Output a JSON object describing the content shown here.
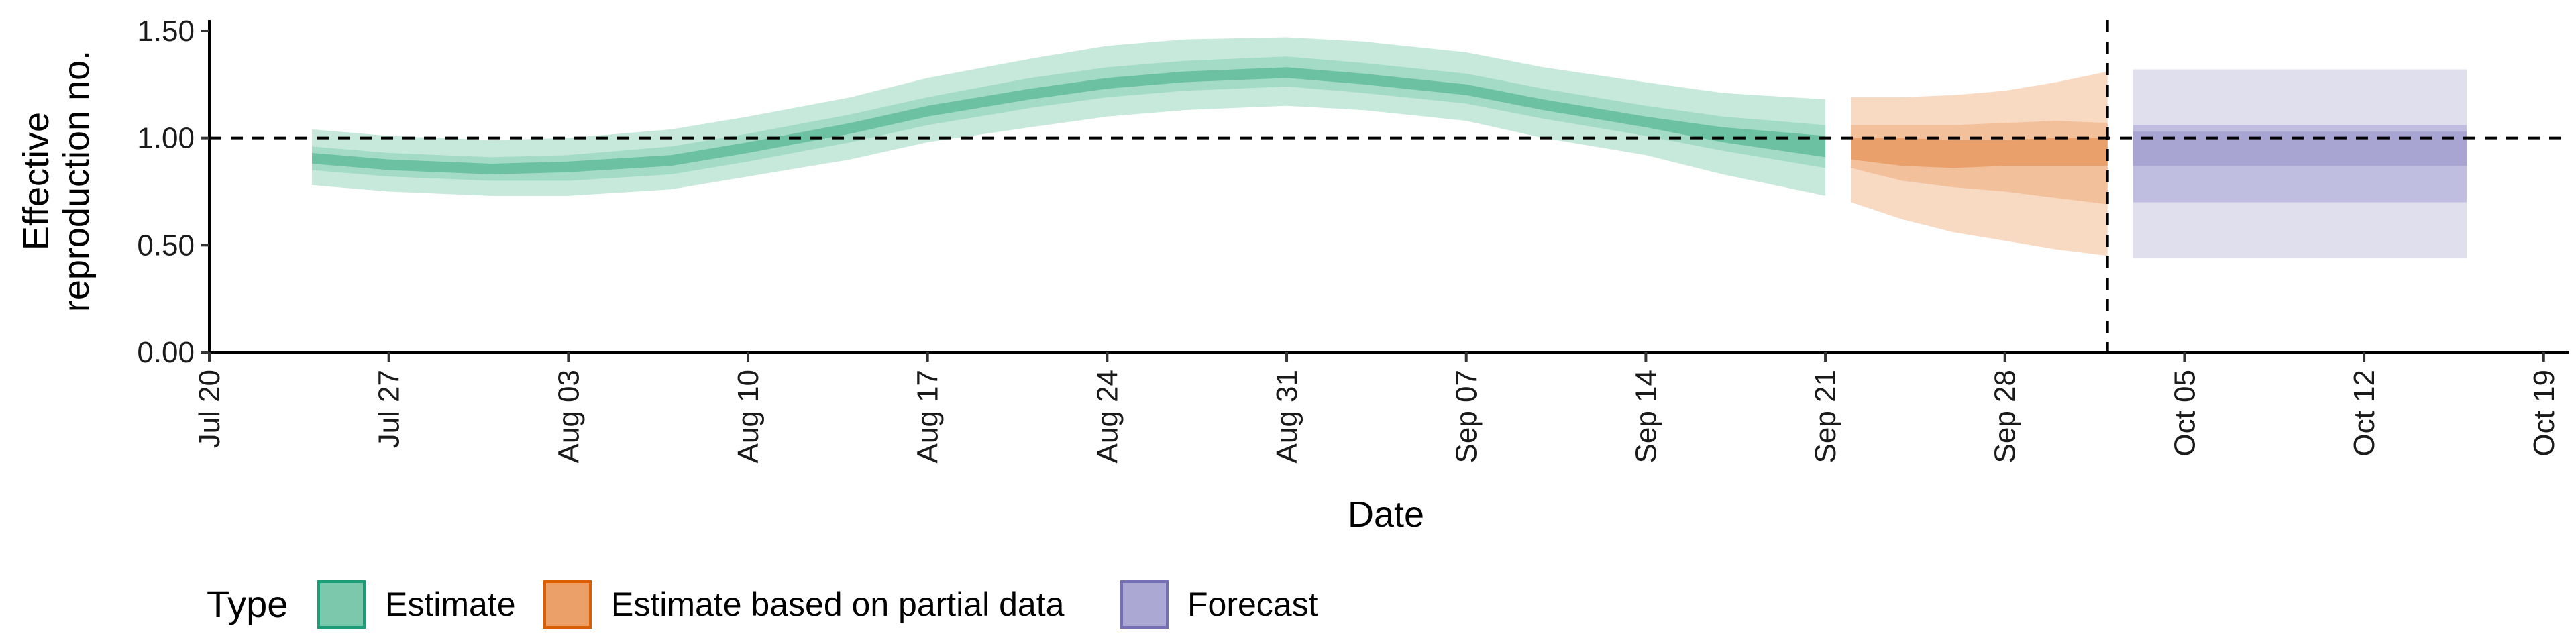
{
  "chart_data": {
    "type": "area",
    "xlabel": "Date",
    "ylabel_lines": [
      "Effective",
      "reproduction no."
    ],
    "ylim": [
      0,
      1.55
    ],
    "xlim": [
      "2020-07-20",
      "2020-10-20"
    ],
    "y_ticks": [
      0,
      0.5,
      1,
      1.5
    ],
    "y_tick_labels": [
      "0.00",
      "0.50",
      "1.00",
      "1.50"
    ],
    "x_ticks": [
      "2020-07-20",
      "2020-07-27",
      "2020-08-03",
      "2020-08-10",
      "2020-08-17",
      "2020-08-24",
      "2020-08-31",
      "2020-09-07",
      "2020-09-14",
      "2020-09-21",
      "2020-09-28",
      "2020-10-05",
      "2020-10-12",
      "2020-10-19"
    ],
    "x_tick_labels": [
      "Jul 20",
      "Jul 27",
      "Aug 03",
      "Aug 10",
      "Aug 17",
      "Aug 24",
      "Aug 31",
      "Sep 07",
      "Sep 14",
      "Sep 21",
      "Sep 28",
      "Oct 05",
      "Oct 12",
      "Oct 19"
    ],
    "reference_line_y": 1.0,
    "reference_line_x": "2020-10-02",
    "grid": false,
    "legend": {
      "title": "Type",
      "position": "bottom-left",
      "entries": [
        {
          "label": "Estimate",
          "fill": "#7cc8ad",
          "stroke": "#1b9e77"
        },
        {
          "label": "Estimate based on partial data",
          "fill": "#eba06a",
          "stroke": "#d95f02"
        },
        {
          "label": "Forecast",
          "fill": "#aba8d4",
          "stroke": "#7570b3"
        }
      ]
    },
    "series": [
      {
        "type": "Estimate",
        "colors": {
          "outer": "#c7e9dc",
          "mid": "#a3dbc6",
          "inner": "#6cc1a2"
        },
        "x": [
          "2020-07-24",
          "2020-07-27",
          "2020-07-31",
          "2020-08-03",
          "2020-08-07",
          "2020-08-10",
          "2020-08-14",
          "2020-08-17",
          "2020-08-21",
          "2020-08-24",
          "2020-08-27",
          "2020-08-31",
          "2020-09-03",
          "2020-09-07",
          "2020-09-10",
          "2020-09-14",
          "2020-09-17",
          "2020-09-21"
        ],
        "outer_low": [
          0.78,
          0.75,
          0.73,
          0.73,
          0.76,
          0.82,
          0.9,
          0.98,
          1.05,
          1.1,
          1.13,
          1.15,
          1.13,
          1.08,
          1.0,
          0.92,
          0.83,
          0.73
        ],
        "outer_high": [
          1.04,
          1.01,
          0.99,
          1.0,
          1.04,
          1.1,
          1.19,
          1.28,
          1.37,
          1.43,
          1.46,
          1.47,
          1.45,
          1.4,
          1.33,
          1.26,
          1.21,
          1.18
        ],
        "mid_low": [
          0.85,
          0.82,
          0.8,
          0.8,
          0.83,
          0.89,
          0.98,
          1.06,
          1.14,
          1.19,
          1.22,
          1.24,
          1.21,
          1.16,
          1.09,
          1.01,
          0.94,
          0.86
        ],
        "mid_high": [
          0.96,
          0.93,
          0.91,
          0.92,
          0.96,
          1.02,
          1.11,
          1.19,
          1.28,
          1.33,
          1.36,
          1.38,
          1.35,
          1.3,
          1.23,
          1.15,
          1.1,
          1.06
        ],
        "inner_low": [
          0.88,
          0.85,
          0.83,
          0.84,
          0.87,
          0.93,
          1.02,
          1.1,
          1.18,
          1.23,
          1.26,
          1.28,
          1.25,
          1.2,
          1.13,
          1.05,
          0.98,
          0.91
        ],
        "inner_high": [
          0.93,
          0.9,
          0.88,
          0.89,
          0.92,
          0.98,
          1.07,
          1.15,
          1.23,
          1.28,
          1.31,
          1.33,
          1.3,
          1.25,
          1.18,
          1.1,
          1.05,
          1.01
        ]
      },
      {
        "type": "Estimate based on partial data",
        "colors": {
          "outer": "#f8d9c2",
          "mid": "#f3c09c",
          "inner": "#e9a06b"
        },
        "x": [
          "2020-09-22",
          "2020-09-24",
          "2020-09-26",
          "2020-09-28",
          "2020-09-30",
          "2020-10-02"
        ],
        "outer_low": [
          0.7,
          0.62,
          0.56,
          0.52,
          0.48,
          0.45
        ],
        "outer_high": [
          1.19,
          1.19,
          1.2,
          1.22,
          1.26,
          1.31
        ],
        "mid_low": [
          0.86,
          0.8,
          0.77,
          0.75,
          0.72,
          0.69
        ],
        "mid_high": [
          1.06,
          1.06,
          1.06,
          1.07,
          1.08,
          1.07
        ],
        "inner_low": [
          0.9,
          0.87,
          0.86,
          0.87,
          0.87,
          0.87
        ],
        "inner_high": [
          1.0,
          1.0,
          0.99,
          0.99,
          1.0,
          1.0
        ]
      },
      {
        "type": "Forecast",
        "colors": {
          "outer": "#e0dfee",
          "mid": "#bfbde0",
          "inner": "#a8a5d2"
        },
        "x": [
          "2020-10-03",
          "2020-10-16"
        ],
        "outer_low": [
          0.44,
          0.44
        ],
        "outer_high": [
          1.32,
          1.32
        ],
        "mid_low": [
          0.7,
          0.7
        ],
        "mid_high": [
          1.06,
          1.06
        ],
        "inner_low": [
          0.87,
          0.87
        ],
        "inner_high": [
          1.03,
          1.03
        ]
      }
    ]
  }
}
